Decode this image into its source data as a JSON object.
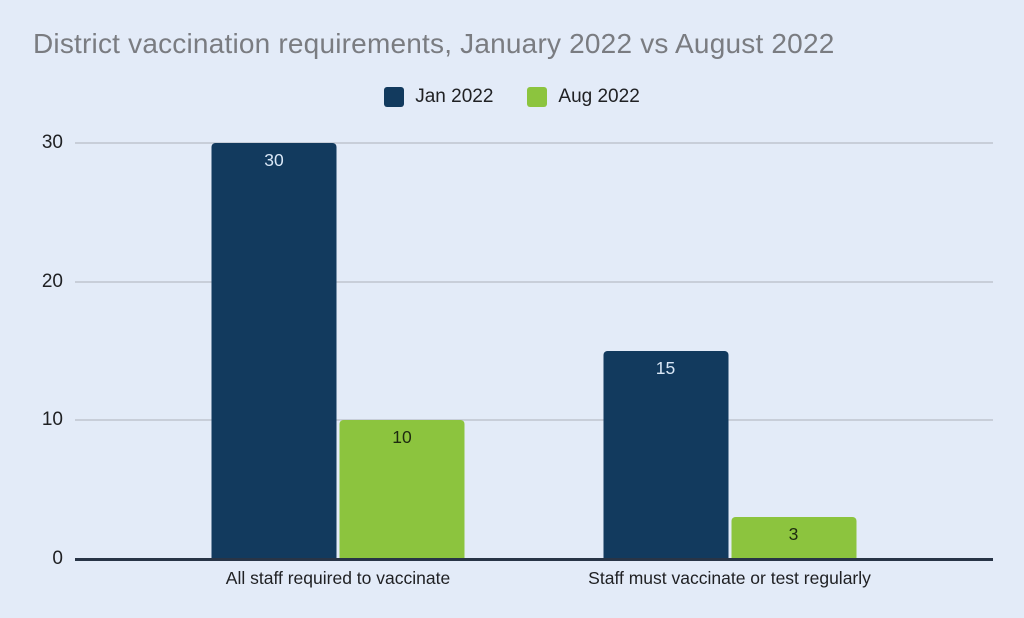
{
  "title": "District vaccination requirements, January 2022 vs August 2022",
  "colors": {
    "background": "#e3ebf8",
    "gridline": "#c8ced9",
    "baseline": "#283446",
    "title_text": "#7a7c81",
    "text": "#202124"
  },
  "chart_data": {
    "type": "bar",
    "title": "District vaccination requirements, January 2022 vs August 2022",
    "categories": [
      "All staff required to vaccinate",
      "Staff must vaccinate or test regularly"
    ],
    "series": [
      {
        "name": "Jan 2022",
        "values": [
          30,
          15
        ],
        "color": "#123a5e",
        "value_label_color": "#d9e7f6"
      },
      {
        "name": "Aug 2022",
        "values": [
          10,
          3
        ],
        "color": "#8cc43e",
        "value_label_color": "#1e2b10"
      }
    ],
    "xlabel": "",
    "ylabel": "",
    "ylim": [
      0,
      30
    ],
    "yticks": [
      0,
      10,
      20,
      30
    ],
    "grid": true,
    "legend_position": "top",
    "group_centers_pct": [
      28.65,
      71.3
    ]
  }
}
